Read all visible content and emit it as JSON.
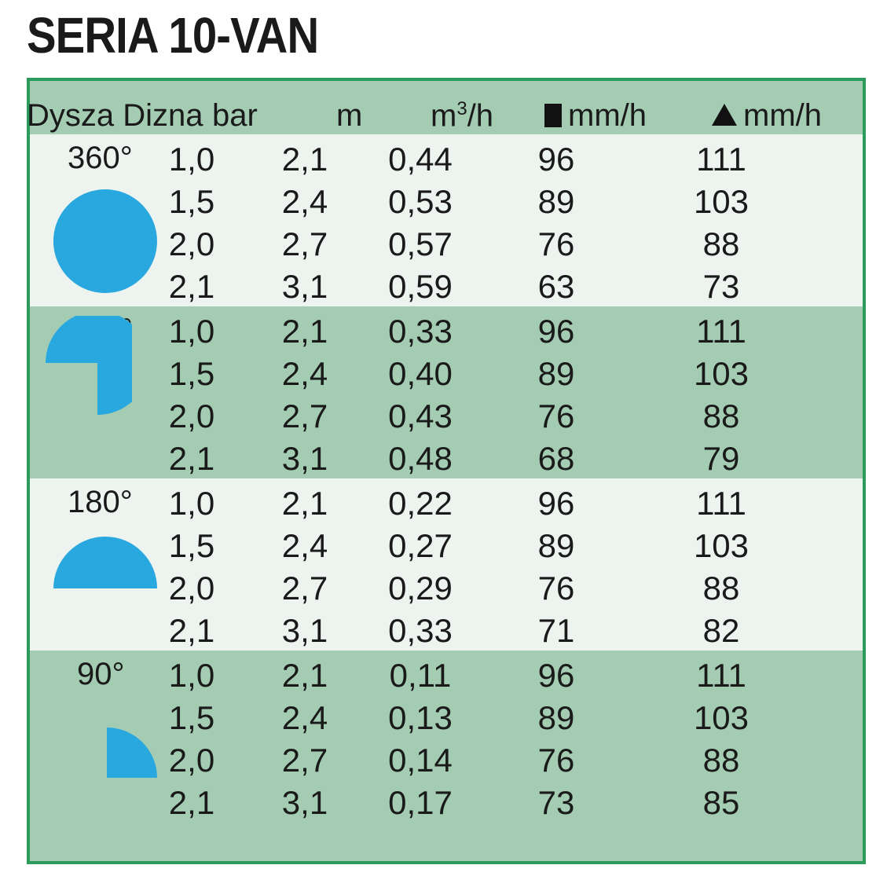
{
  "title": "SERIA 10-VAN",
  "header": {
    "nozzle": "Dysza Dizna",
    "bar": "bar",
    "m": "m",
    "flow_base": "m",
    "flow_sup": "3",
    "flow_tail": "/h",
    "square_rate": "mm/h",
    "triangle_rate": "mm/h"
  },
  "colors": {
    "border": "#2c9a5a",
    "dark_band": "#a4ccb3",
    "light_band": "#edf4ef",
    "shape": "#29a8e0"
  },
  "groups": [
    {
      "angle": "360°",
      "shape": "circle",
      "rows": [
        [
          "1,0",
          "2,1",
          "0,44",
          "96",
          "111"
        ],
        [
          "1,5",
          "2,4",
          "0,53",
          "89",
          "103"
        ],
        [
          "2,0",
          "2,7",
          "0,57",
          "76",
          "88"
        ],
        [
          "2,1",
          "3,1",
          "0,59",
          "63",
          "73"
        ]
      ]
    },
    {
      "angle": "270°",
      "shape": "three-quarter",
      "rows": [
        [
          "1,0",
          "2,1",
          "0,33",
          "96",
          "111"
        ],
        [
          "1,5",
          "2,4",
          "0,40",
          "89",
          "103"
        ],
        [
          "2,0",
          "2,7",
          "0,43",
          "76",
          "88"
        ],
        [
          "2,1",
          "3,1",
          "0,48",
          "68",
          "79"
        ]
      ]
    },
    {
      "angle": "180°",
      "shape": "half",
      "rows": [
        [
          "1,0",
          "2,1",
          "0,22",
          "96",
          "111"
        ],
        [
          "1,5",
          "2,4",
          "0,27",
          "89",
          "103"
        ],
        [
          "2,0",
          "2,7",
          "0,29",
          "76",
          "88"
        ],
        [
          "2,1",
          "3,1",
          "0,33",
          "71",
          "82"
        ]
      ]
    },
    {
      "angle": "90°",
      "shape": "quarter",
      "rows": [
        [
          "1,0",
          "2,1",
          "0,11",
          "96",
          "111"
        ],
        [
          "1,5",
          "2,4",
          "0,13",
          "89",
          "103"
        ],
        [
          "2,0",
          "2,7",
          "0,14",
          "76",
          "88"
        ],
        [
          "2,1",
          "3,1",
          "0,17",
          "73",
          "85"
        ]
      ]
    }
  ]
}
